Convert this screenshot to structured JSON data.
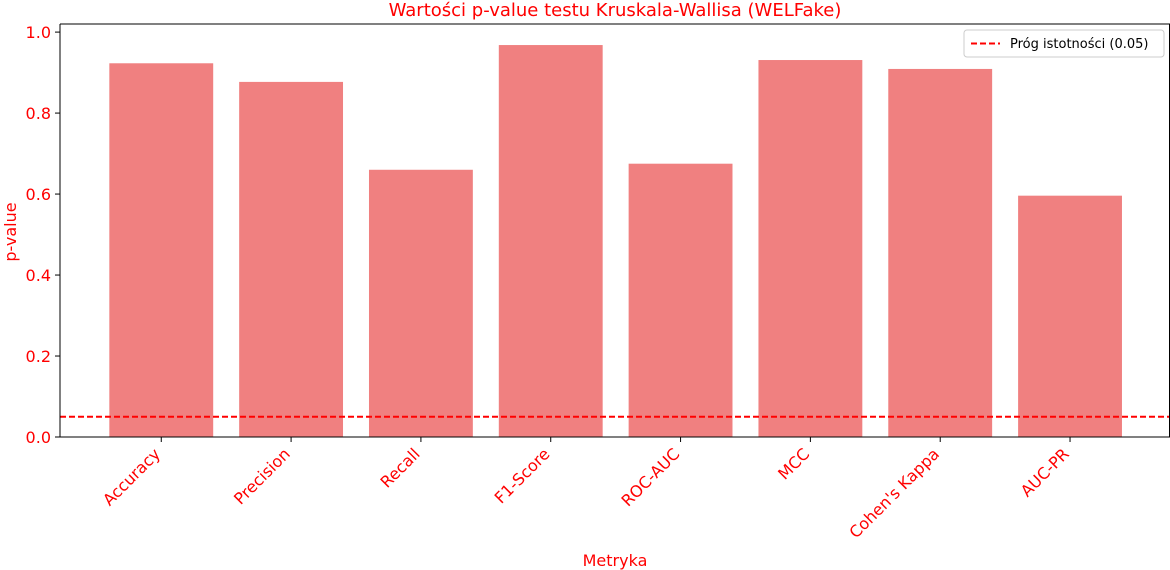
{
  "chart_data": {
    "type": "bar",
    "title": "Wartości p-value testu Kruskala-Wallisa (WELFake)",
    "xlabel": "Metryka",
    "ylabel": "p-value",
    "categories": [
      "Accuracy",
      "Precision",
      "Recall",
      "F1-Score",
      "ROC-AUC",
      "MCC",
      "Cohen's Kappa",
      "AUC-PR"
    ],
    "values": [
      0.923,
      0.877,
      0.66,
      0.968,
      0.675,
      0.931,
      0.909,
      0.596
    ],
    "ylim": [
      0,
      1.02
    ],
    "yticks": [
      0.0,
      0.2,
      0.4,
      0.6,
      0.8,
      1.0
    ],
    "ytick_labels": [
      "0.0",
      "0.2",
      "0.4",
      "0.6",
      "0.8",
      "1.0"
    ],
    "threshold": {
      "value": 0.05,
      "label": "Próg istotności (0.05)"
    },
    "legend_position": "top-right",
    "grid": false,
    "bar_color": "#f08080",
    "threshold_color": "#ff0000",
    "text_color": "#ff0000"
  }
}
